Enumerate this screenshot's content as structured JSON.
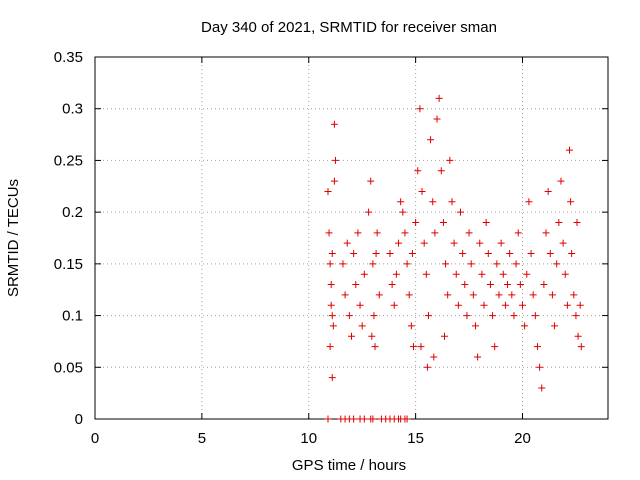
{
  "chart_data": {
    "type": "scatter",
    "title": "Day 340 of 2021, SRMTID for receiver sman",
    "xlabel": "GPS time / hours",
    "ylabel": "SRMTID / TECUs",
    "xlim": [
      0,
      24
    ],
    "ylim": [
      0,
      0.35
    ],
    "xticks": [
      0,
      5,
      10,
      15,
      20
    ],
    "xtick_labels": [
      "0",
      "5",
      "10",
      "15",
      "20"
    ],
    "yticks": [
      0,
      0.05,
      0.1,
      0.15,
      0.2,
      0.25,
      0.3,
      0.35
    ],
    "ytick_labels": [
      "0",
      "0.05",
      "0.1",
      "0.15",
      "0.2",
      "0.25",
      "0.3",
      "0.35"
    ],
    "grid": true,
    "legend": "none",
    "colors": {
      "series": "#e00000",
      "grid": "#a0a0a0",
      "axis": "#000000"
    },
    "series": [
      {
        "name": "SRMTID",
        "marker": "plus",
        "points": [
          [
            10.9,
            0.22
          ],
          [
            10.95,
            0.18
          ],
          [
            11.0,
            0.15
          ],
          [
            11.05,
            0.13
          ],
          [
            11.1,
            0.1
          ],
          [
            11.0,
            0.07
          ],
          [
            11.1,
            0.04
          ],
          [
            11.2,
            0.285
          ],
          [
            11.25,
            0.25
          ],
          [
            11.2,
            0.23
          ],
          [
            11.1,
            0.16
          ],
          [
            11.05,
            0.11
          ],
          [
            11.15,
            0.09
          ],
          [
            11.6,
            0.15
          ],
          [
            11.7,
            0.12
          ],
          [
            11.8,
            0.17
          ],
          [
            11.9,
            0.1
          ],
          [
            12.0,
            0.08
          ],
          [
            12.1,
            0.16
          ],
          [
            12.2,
            0.13
          ],
          [
            12.3,
            0.18
          ],
          [
            12.4,
            0.11
          ],
          [
            12.5,
            0.09
          ],
          [
            12.6,
            0.14
          ],
          [
            12.8,
            0.2
          ],
          [
            12.9,
            0.23
          ],
          [
            13.0,
            0.15
          ],
          [
            13.05,
            0.1
          ],
          [
            13.1,
            0.07
          ],
          [
            13.2,
            0.18
          ],
          [
            13.3,
            0.12
          ],
          [
            12.95,
            0.08
          ],
          [
            13.15,
            0.16
          ],
          [
            13.8,
            0.16
          ],
          [
            13.9,
            0.13
          ],
          [
            14.0,
            0.11
          ],
          [
            14.1,
            0.14
          ],
          [
            14.2,
            0.17
          ],
          [
            14.3,
            0.21
          ],
          [
            14.4,
            0.2
          ],
          [
            14.5,
            0.18
          ],
          [
            14.6,
            0.15
          ],
          [
            14.7,
            0.12
          ],
          [
            14.8,
            0.09
          ],
          [
            14.9,
            0.07
          ],
          [
            14.85,
            0.16
          ],
          [
            15.0,
            0.19
          ],
          [
            15.1,
            0.24
          ],
          [
            15.2,
            0.3
          ],
          [
            15.3,
            0.22
          ],
          [
            15.4,
            0.17
          ],
          [
            15.5,
            0.14
          ],
          [
            15.6,
            0.1
          ],
          [
            15.7,
            0.27
          ],
          [
            15.8,
            0.21
          ],
          [
            15.9,
            0.18
          ],
          [
            16.0,
            0.29
          ],
          [
            16.1,
            0.31
          ],
          [
            16.2,
            0.24
          ],
          [
            16.3,
            0.19
          ],
          [
            16.4,
            0.15
          ],
          [
            16.5,
            0.12
          ],
          [
            16.6,
            0.25
          ],
          [
            16.7,
            0.21
          ],
          [
            16.8,
            0.17
          ],
          [
            16.9,
            0.14
          ],
          [
            17.0,
            0.11
          ],
          [
            15.25,
            0.07
          ],
          [
            15.55,
            0.05
          ],
          [
            15.85,
            0.06
          ],
          [
            16.35,
            0.08
          ],
          [
            17.1,
            0.2
          ],
          [
            17.2,
            0.16
          ],
          [
            17.3,
            0.13
          ],
          [
            17.4,
            0.1
          ],
          [
            17.5,
            0.18
          ],
          [
            17.6,
            0.15
          ],
          [
            17.7,
            0.12
          ],
          [
            17.8,
            0.09
          ],
          [
            17.9,
            0.06
          ],
          [
            18.0,
            0.17
          ],
          [
            18.1,
            0.14
          ],
          [
            18.2,
            0.11
          ],
          [
            18.3,
            0.19
          ],
          [
            18.4,
            0.16
          ],
          [
            18.5,
            0.13
          ],
          [
            18.6,
            0.1
          ],
          [
            18.7,
            0.07
          ],
          [
            18.8,
            0.15
          ],
          [
            18.9,
            0.12
          ],
          [
            19.0,
            0.17
          ],
          [
            19.1,
            0.14
          ],
          [
            19.2,
            0.11
          ],
          [
            19.3,
            0.13
          ],
          [
            19.4,
            0.16
          ],
          [
            19.5,
            0.12
          ],
          [
            19.6,
            0.1
          ],
          [
            19.7,
            0.15
          ],
          [
            19.8,
            0.18
          ],
          [
            19.9,
            0.13
          ],
          [
            20.0,
            0.11
          ],
          [
            20.1,
            0.09
          ],
          [
            20.2,
            0.14
          ],
          [
            20.3,
            0.21
          ],
          [
            20.4,
            0.16
          ],
          [
            20.5,
            0.12
          ],
          [
            20.6,
            0.1
          ],
          [
            20.7,
            0.07
          ],
          [
            20.8,
            0.05
          ],
          [
            20.9,
            0.03
          ],
          [
            21.0,
            0.13
          ],
          [
            21.1,
            0.18
          ],
          [
            21.2,
            0.22
          ],
          [
            21.3,
            0.16
          ],
          [
            21.4,
            0.12
          ],
          [
            21.5,
            0.09
          ],
          [
            21.6,
            0.15
          ],
          [
            21.7,
            0.19
          ],
          [
            21.8,
            0.23
          ],
          [
            21.9,
            0.17
          ],
          [
            22.0,
            0.14
          ],
          [
            22.1,
            0.11
          ],
          [
            22.2,
            0.26
          ],
          [
            22.25,
            0.21
          ],
          [
            22.3,
            0.16
          ],
          [
            22.4,
            0.12
          ],
          [
            22.5,
            0.1
          ],
          [
            22.6,
            0.08
          ],
          [
            22.7,
            0.11
          ],
          [
            22.75,
            0.07
          ],
          [
            22.55,
            0.19
          ],
          [
            10.9,
            0.0
          ],
          [
            11.5,
            0.0
          ],
          [
            11.7,
            0.0
          ],
          [
            11.9,
            0.0
          ],
          [
            12.1,
            0.0
          ],
          [
            12.4,
            0.0
          ],
          [
            12.6,
            0.0
          ],
          [
            12.9,
            0.0
          ],
          [
            13.0,
            0.0
          ],
          [
            13.4,
            0.0
          ],
          [
            13.6,
            0.0
          ],
          [
            13.8,
            0.0
          ],
          [
            14.0,
            0.0
          ],
          [
            14.2,
            0.0
          ],
          [
            14.3,
            0.0
          ],
          [
            14.5,
            0.0
          ],
          [
            14.6,
            0.0
          ]
        ]
      }
    ]
  }
}
